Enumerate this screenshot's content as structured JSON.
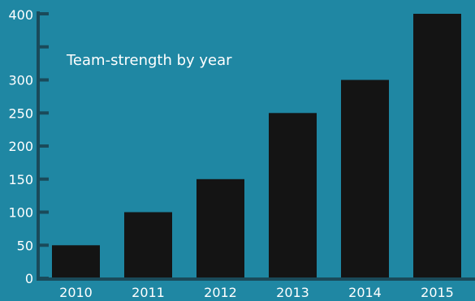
{
  "colors": {
    "background": "#1f87a3",
    "bar": "#141414",
    "axis": "#1a4a5a",
    "text": "#ffffff"
  },
  "chart_data": {
    "type": "bar",
    "title": "Team-strength by year",
    "xlabel": "",
    "ylabel": "",
    "categories": [
      "2010",
      "2011",
      "2012",
      "2013",
      "2014",
      "2015"
    ],
    "values": [
      50,
      100,
      150,
      250,
      300,
      400
    ],
    "ylim": [
      0,
      400
    ],
    "yticks": [
      0,
      50,
      100,
      150,
      200,
      250,
      300,
      350,
      400
    ],
    "ytick_labels": [
      "0",
      "50",
      "100",
      "150",
      "200",
      "250",
      "300",
      "",
      "400"
    ],
    "grid": false,
    "legend": "none"
  }
}
